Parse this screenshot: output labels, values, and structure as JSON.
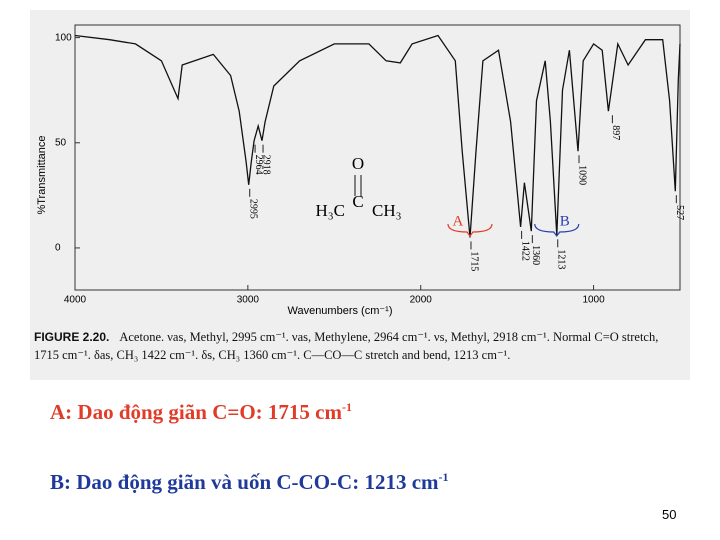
{
  "chart_data": {
    "type": "line",
    "x_label": "Wavenumbers (cm⁻¹)",
    "y_label": "%Transmittance",
    "color": "#111111",
    "x": [
      4000,
      3800,
      3650,
      3500,
      3404,
      3380,
      3200,
      3100,
      3050,
      3010,
      2995,
      2980,
      2964,
      2940,
      2918,
      2900,
      2850,
      2700,
      2500,
      2300,
      2200,
      2118,
      2050,
      1900,
      1800,
      1760,
      1715,
      1680,
      1640,
      1550,
      1480,
      1422,
      1400,
      1360,
      1330,
      1280,
      1250,
      1213,
      1180,
      1140,
      1090,
      1060,
      1000,
      950,
      914,
      860,
      800,
      700,
      600,
      560,
      527,
      510,
      500
    ],
    "values": [
      101,
      99,
      97,
      89,
      71,
      87,
      92,
      82,
      65,
      41,
      30,
      41,
      51,
      58,
      51,
      60,
      77,
      89,
      97,
      97,
      89,
      88,
      97,
      101,
      89,
      46,
      5,
      46,
      89,
      94,
      60,
      10,
      31,
      8,
      70,
      89,
      60,
      6,
      75,
      94,
      46,
      89,
      97,
      94,
      65,
      97,
      87,
      99,
      99,
      70,
      27,
      80,
      97
    ],
    "xlim": [
      4000,
      500
    ],
    "ylim": [
      -20,
      106
    ],
    "xticks": [
      4000,
      3000,
      2000,
      1000
    ],
    "yticks": [
      0,
      50,
      100
    ],
    "peak_labels": [
      2918,
      2964,
      2995,
      1715,
      1422,
      1360,
      1213,
      1090,
      897,
      527
    ],
    "markers": [
      {
        "label": "A",
        "x": 1715
      },
      {
        "label": "B",
        "x": 1213
      }
    ],
    "structure": {
      "o": "O",
      "c": "C",
      "left": "H₃C",
      "right": "CH₃"
    }
  },
  "caption_label": "FIGURE 2.20.",
  "caption_text": "Acetone. νas, Methyl, 2995 cm⁻¹. νas, Methylene, 2964 cm⁻¹. νs, Methyl, 2918 cm⁻¹. Normal C=O stretch, 1715 cm⁻¹. δas, CH₃ 1422 cm⁻¹. δs, CH₃ 1360 cm⁻¹. C—CO—C stretch and bend, 1213 cm⁻¹.",
  "note_a": {
    "text": "A: Dao động giãn C=O: 1715 cm",
    "sup": "-1"
  },
  "note_b": {
    "text": "B: Dao động giãn và uốn C-CO-C: 1213 cm",
    "sup": "-1"
  },
  "page_number": "50"
}
